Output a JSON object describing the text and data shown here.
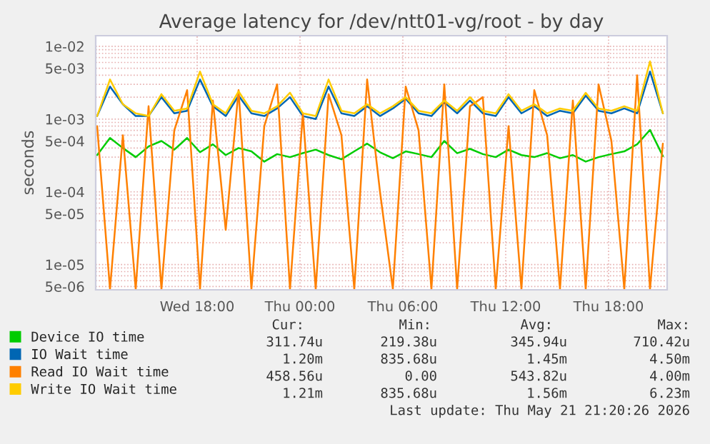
{
  "chart_data": {
    "type": "line",
    "title": "Average latency for /dev/ntt01-vg/root - by day",
    "ylabel": "seconds",
    "log": "y",
    "grid": true,
    "legend": "bottom",
    "x": [
      "2026-05-20T12:10",
      "2026-05-20T12:55",
      "2026-05-20T13:40",
      "2026-05-20T14:25",
      "2026-05-20T15:10",
      "2026-05-20T15:55",
      "2026-05-20T16:40",
      "2026-05-20T17:25",
      "2026-05-20T18:10",
      "2026-05-20T18:55",
      "2026-05-20T19:40",
      "2026-05-20T20:25",
      "2026-05-20T21:10",
      "2026-05-20T21:55",
      "2026-05-20T22:40",
      "2026-05-20T23:25",
      "2026-05-21T00:10",
      "2026-05-21T00:55",
      "2026-05-21T01:40",
      "2026-05-21T02:25",
      "2026-05-21T03:10",
      "2026-05-21T03:55",
      "2026-05-21T04:40",
      "2026-05-21T05:25",
      "2026-05-21T06:10",
      "2026-05-21T06:55",
      "2026-05-21T07:40",
      "2026-05-21T08:25",
      "2026-05-21T09:10",
      "2026-05-21T09:55",
      "2026-05-21T10:40",
      "2026-05-21T11:25",
      "2026-05-21T12:10",
      "2026-05-21T12:55",
      "2026-05-21T13:40",
      "2026-05-21T14:25",
      "2026-05-21T15:10",
      "2026-05-21T15:55",
      "2026-05-21T16:40",
      "2026-05-21T17:25",
      "2026-05-21T18:10",
      "2026-05-21T18:55",
      "2026-05-21T19:40",
      "2026-05-21T20:25",
      "2026-05-21T21:10"
    ],
    "xlim": [
      "2026-05-20T12:05",
      "2026-05-21T21:25"
    ],
    "xticks": [
      {
        "value": "2026-05-20T18:00",
        "label": "Wed 18:00"
      },
      {
        "value": "2026-05-21T00:00",
        "label": "Thu 00:00"
      },
      {
        "value": "2026-05-21T06:00",
        "label": "Thu 06:00"
      },
      {
        "value": "2026-05-21T12:00",
        "label": "Thu 12:00"
      },
      {
        "value": "2026-05-21T18:00",
        "label": "Thu 18:00"
      }
    ],
    "ylim": [
      4.5e-06,
      0.014
    ],
    "yticks": [
      {
        "value": 0.01,
        "label": "1e-02"
      },
      {
        "value": 0.005,
        "label": "5e-03"
      },
      {
        "value": 0.001,
        "label": "1e-03"
      },
      {
        "value": 0.0005,
        "label": "5e-04"
      },
      {
        "value": 0.0001,
        "label": "1e-04"
      },
      {
        "value": 5e-05,
        "label": "5e-05"
      },
      {
        "value": 1e-05,
        "label": "1e-05"
      },
      {
        "value": 5e-06,
        "label": "5e-06"
      }
    ],
    "series": [
      {
        "name": "Device IO time",
        "color": "#00cc00",
        "values": [
          0.00032,
          0.00055,
          0.0004,
          0.0003,
          0.00042,
          0.0005,
          0.00038,
          0.00055,
          0.00035,
          0.00045,
          0.00032,
          0.0004,
          0.00036,
          0.00026,
          0.00033,
          0.0003,
          0.00034,
          0.00038,
          0.00032,
          0.00028,
          0.00036,
          0.00046,
          0.00035,
          0.00029,
          0.00036,
          0.00033,
          0.0003,
          0.0005,
          0.00034,
          0.00039,
          0.00033,
          0.0003,
          0.00038,
          0.00032,
          0.0003,
          0.00034,
          0.00029,
          0.00032,
          0.00026,
          0.0003,
          0.00033,
          0.00036,
          0.00045,
          0.00071,
          0.00031
        ]
      },
      {
        "name": "IO Wait time",
        "color": "#0066b3",
        "values": [
          0.0011,
          0.0028,
          0.0016,
          0.0011,
          0.0011,
          0.002,
          0.0012,
          0.0013,
          0.0035,
          0.0015,
          0.0011,
          0.0021,
          0.0012,
          0.0011,
          0.0014,
          0.002,
          0.0011,
          0.001,
          0.0028,
          0.0012,
          0.0011,
          0.0015,
          0.0011,
          0.0014,
          0.0019,
          0.0012,
          0.0011,
          0.0017,
          0.0012,
          0.0018,
          0.0012,
          0.0011,
          0.002,
          0.0012,
          0.0015,
          0.0011,
          0.0013,
          0.0012,
          0.0021,
          0.0013,
          0.0012,
          0.0014,
          0.0012,
          0.0045,
          0.0012
        ]
      },
      {
        "name": "Read IO Wait time",
        "color": "#ff8000",
        "values": [
          0.0008,
          4.6e-06,
          0.0006,
          4.6e-06,
          0.0015,
          4.6e-06,
          0.0007,
          0.0025,
          4.6e-06,
          0.0018,
          3e-05,
          0.0025,
          4.6e-06,
          0.0008,
          0.003,
          4.6e-06,
          0.0012,
          4.6e-06,
          0.0022,
          0.0006,
          4.6e-06,
          0.0035,
          0.0001,
          4.6e-06,
          0.0028,
          0.0007,
          4.6e-06,
          0.003,
          4.6e-06,
          0.0015,
          0.002,
          4.6e-06,
          0.0008,
          4.6e-06,
          0.0025,
          0.0006,
          4.6e-06,
          0.0018,
          4.6e-06,
          0.003,
          0.0005,
          4.6e-06,
          0.004,
          4.6e-06,
          0.00046
        ]
      },
      {
        "name": "Write IO Wait time",
        "color": "#ffcc00",
        "values": [
          0.0011,
          0.0035,
          0.0016,
          0.0012,
          0.0011,
          0.0022,
          0.0013,
          0.0014,
          0.0045,
          0.0016,
          0.0012,
          0.0024,
          0.0013,
          0.0012,
          0.0015,
          0.0023,
          0.0012,
          0.0011,
          0.0035,
          0.0013,
          0.0012,
          0.0016,
          0.0012,
          0.0015,
          0.002,
          0.0013,
          0.0012,
          0.0018,
          0.0013,
          0.002,
          0.0013,
          0.0012,
          0.0022,
          0.0013,
          0.0016,
          0.0012,
          0.0014,
          0.0013,
          0.0023,
          0.0014,
          0.0013,
          0.0015,
          0.0013,
          0.0062,
          0.0012
        ]
      }
    ],
    "annotations": [
      "Cur:",
      "Min:",
      "Avg:",
      "Max:",
      "311.74u",
      "219.38u",
      "345.94u",
      "710.42u",
      "1.20m",
      "835.68u",
      "1.45m",
      "4.50m",
      "458.56u",
      "0.00",
      "543.82u",
      "4.00m",
      "1.21m",
      "835.68u",
      "1.56m",
      "6.23m",
      "Last update: Thu May 21 21:20:26 2026"
    ]
  }
}
